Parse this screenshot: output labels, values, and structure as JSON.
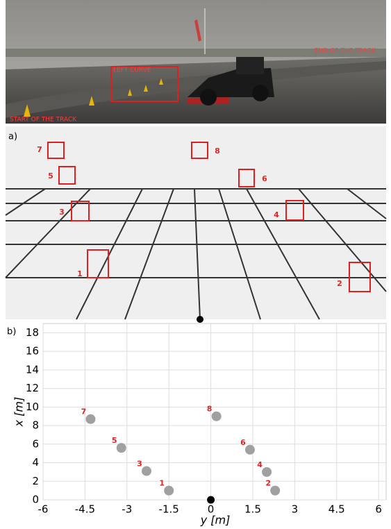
{
  "photo": {
    "labels": [
      "START OF THE TRACK",
      "LEFT CURVE",
      "END OF THE TRACK"
    ]
  },
  "panel_a": {
    "label": "a)",
    "markers": [
      "1",
      "2",
      "3",
      "4",
      "5",
      "6",
      "7",
      "8"
    ]
  },
  "chart_data": {
    "type": "scatter",
    "panel_label": "b)",
    "x_label": "y [m]",
    "y_label": "x [m]",
    "series": [
      {
        "color": "#a0a0a0",
        "labels": [
          "1",
          "2",
          "3",
          "4",
          "5",
          "6",
          "7",
          "8"
        ],
        "x": [
          -1.5,
          2.3,
          -2.3,
          2.0,
          -3.2,
          1.4,
          -4.3,
          0.2
        ],
        "values": [
          1.0,
          1.0,
          3.1,
          3.0,
          5.6,
          5.4,
          8.7,
          9.0
        ]
      },
      {
        "color": "#000000",
        "x": [
          0
        ],
        "values": [
          0
        ]
      }
    ],
    "label_color": "#d92626",
    "xlim": [
      -6,
      6.27
    ],
    "xticks": [
      -6,
      -4.5,
      -3,
      -1.5,
      0,
      1.5,
      3,
      4.5,
      6
    ],
    "ylim": [
      0,
      19
    ],
    "yticks": [
      0,
      2,
      4,
      6,
      8,
      10,
      12,
      14,
      16,
      18
    ],
    "grid": true
  }
}
